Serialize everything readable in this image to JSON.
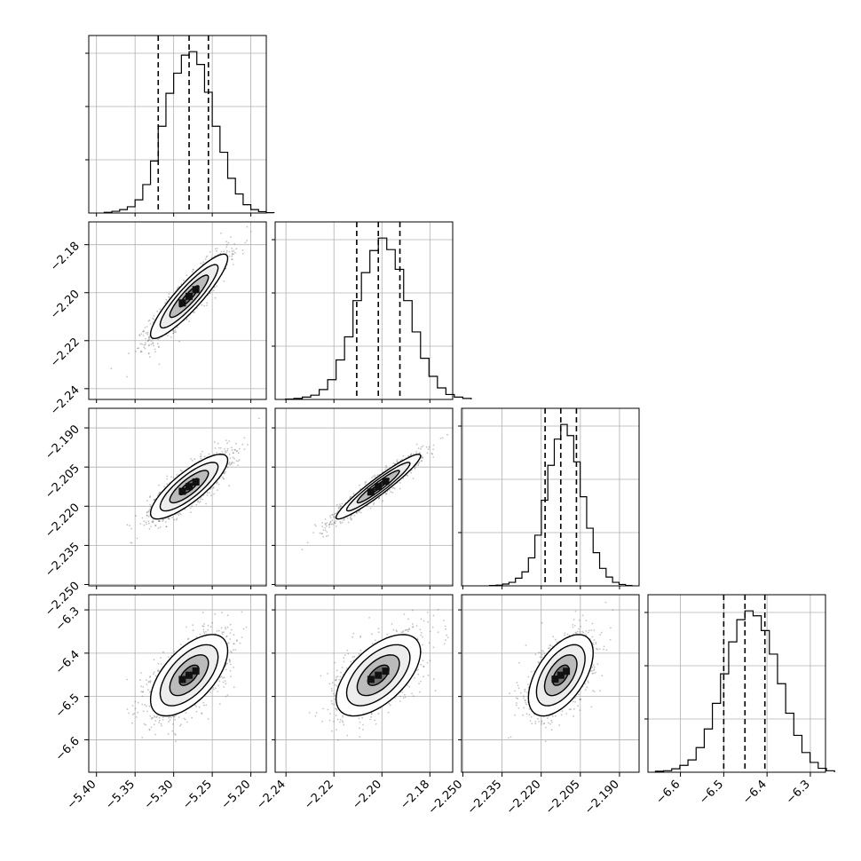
{
  "chart_data": {
    "type": "corner",
    "parameter_count": 4,
    "grid": true,
    "colors": {
      "contour_line": "#000000",
      "scatter": "#555555",
      "hist_line": "#000000"
    },
    "axes_ranges": [
      [
        -5.41,
        -5.18
      ],
      [
        -2.2445,
        -2.1705
      ],
      [
        -2.2505,
        -2.1825
      ],
      [
        -6.675,
        -6.265
      ]
    ],
    "tick_labels": [
      [
        "−5.40",
        "−5.35",
        "−5.30",
        "−5.25",
        "−5.20"
      ],
      [
        "−2.24",
        "−2.22",
        "−2.20",
        "−2.18"
      ],
      [
        "−2.250",
        "−2.235",
        "−2.220",
        "−2.205",
        "−2.190"
      ],
      [
        "−6.6",
        "−6.5",
        "−6.4",
        "−6.3"
      ]
    ],
    "tick_values": [
      [
        -5.4,
        -5.35,
        -5.3,
        -5.25,
        -5.2
      ],
      [
        -2.24,
        -2.22,
        -2.2,
        -2.18
      ],
      [
        -2.25,
        -2.235,
        -2.22,
        -2.205,
        -2.19
      ],
      [
        -6.6,
        -6.5,
        -6.4,
        -6.3
      ]
    ],
    "means": [
      -5.28,
      -2.2015,
      -2.2125,
      -6.451
    ],
    "sigmas": [
      0.025,
      0.0088,
      0.0062,
      0.047
    ],
    "quantiles": [
      [
        -5.32,
        -5.28,
        -5.255
      ],
      [
        -2.2105,
        -2.2015,
        -2.1925
      ],
      [
        -2.2185,
        -2.2125,
        -2.2065
      ],
      [
        -6.5,
        -6.451,
        -6.405
      ]
    ],
    "correlations": {
      "1-0": 0.9,
      "2-0": 0.82,
      "2-1": 0.95,
      "3-0": 0.6,
      "3-1": 0.58,
      "3-2": 0.55
    },
    "histograms": [
      {
        "param": 0,
        "counts": [
          2,
          5,
          10,
          18,
          38,
          82,
          150,
          250,
          345,
          403,
          455,
          465,
          428,
          348,
          250,
          175,
          100,
          55,
          24,
          10,
          4,
          1
        ]
      },
      {
        "param": 1,
        "counts": [
          1,
          3,
          7,
          13,
          30,
          60,
          120,
          190,
          300,
          385,
          452,
          490,
          455,
          395,
          300,
          205,
          125,
          70,
          35,
          15,
          7,
          3
        ]
      },
      {
        "param": 2,
        "counts": [
          1,
          2,
          5,
          10,
          22,
          40,
          80,
          145,
          245,
          345,
          420,
          462,
          430,
          355,
          255,
          165,
          95,
          50,
          25,
          10,
          4,
          1
        ]
      },
      {
        "param": 3,
        "counts": [
          2,
          3,
          7,
          14,
          25,
          50,
          88,
          140,
          200,
          265,
          310,
          328,
          318,
          288,
          240,
          180,
          120,
          75,
          40,
          20,
          8,
          3
        ]
      }
    ]
  }
}
